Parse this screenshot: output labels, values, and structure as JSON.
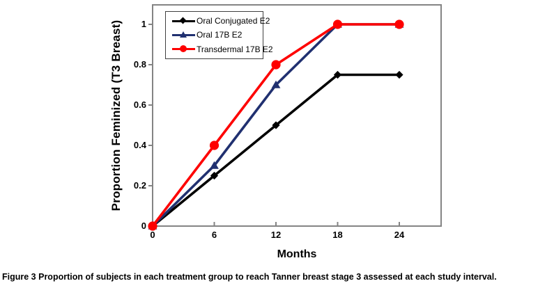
{
  "figure": {
    "caption_label": "Figure 3",
    "caption_text": "Proportion of subjects in each treatment group to reach Tanner breast stage 3 assessed at each study interval."
  },
  "chart_data": {
    "type": "line",
    "title": "",
    "xlabel": "Months",
    "ylabel": "Proportion Feminized (T3 Breast)",
    "x": [
      0,
      6,
      12,
      18,
      24
    ],
    "x_tick_labels": [
      "0",
      "6",
      "12",
      "18",
      "24"
    ],
    "y_ticks": [
      0,
      0.2,
      0.4,
      0.6,
      0.8,
      1
    ],
    "y_tick_labels": [
      "0",
      "0.2",
      "0.4",
      "0.6",
      "0.8",
      "1"
    ],
    "xlim": [
      0,
      28
    ],
    "ylim": [
      0,
      1.1
    ],
    "grid": false,
    "legend_position": "inside-top-left",
    "frame_color": "#848484",
    "series": [
      {
        "name": "Oral Conjugated E2",
        "color": "#000000",
        "marker": "diamond",
        "values": [
          0,
          0.25,
          0.5,
          0.75,
          0.75
        ]
      },
      {
        "name": "Oral 17B E2",
        "color": "#203070",
        "marker": "triangle",
        "values": [
          0,
          0.3,
          0.7,
          1,
          1
        ]
      },
      {
        "name": "Transdermal 17B E2",
        "color": "#fe0000",
        "marker": "circle",
        "values": [
          0,
          0.4,
          0.8,
          1,
          1
        ]
      }
    ]
  }
}
